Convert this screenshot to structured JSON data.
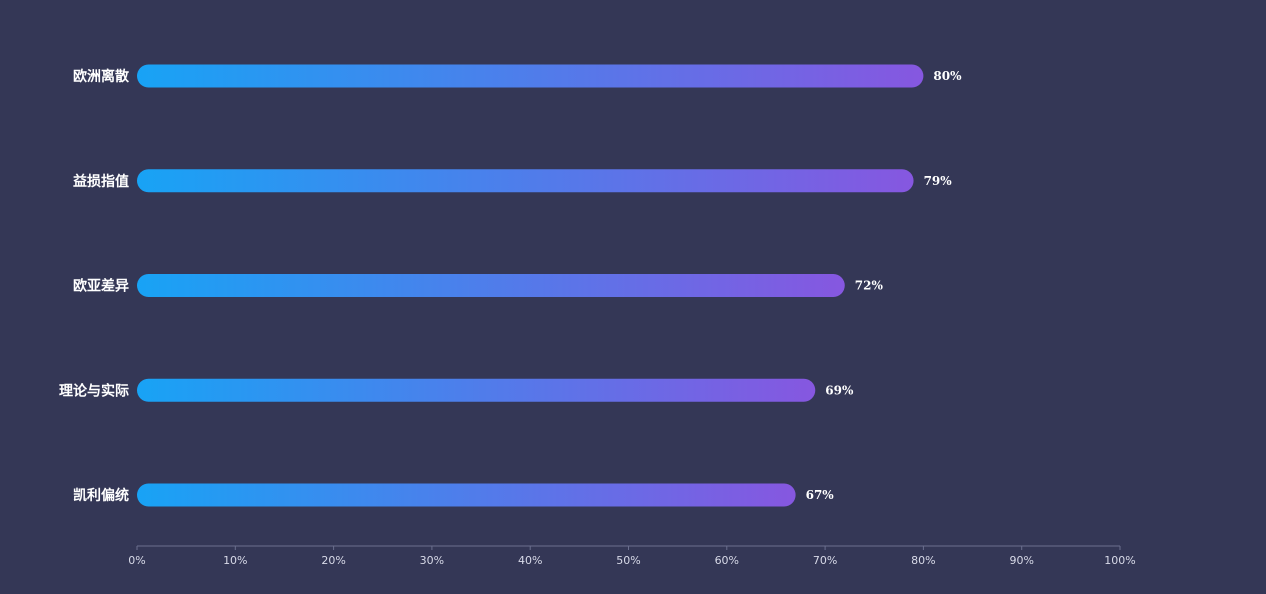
{
  "chart_data": {
    "type": "bar",
    "orientation": "horizontal",
    "categories": [
      "欧洲离散",
      "益损指值",
      "欧亚差异",
      "理论与实际",
      "凯利偏统"
    ],
    "values": [
      80,
      79,
      72,
      69,
      67
    ],
    "value_labels": [
      "80%",
      "79%",
      "72%",
      "69%",
      "67%"
    ],
    "xlim": [
      0,
      100
    ],
    "x_ticks": [
      "0%",
      "10%",
      "20%",
      "30%",
      "40%",
      "50%",
      "60%",
      "70%",
      "80%",
      "90%",
      "100%"
    ],
    "grid": false,
    "colors": {
      "bar_start": "#18a3f5",
      "bar_end": "#8657e0",
      "background": "#343756",
      "axis": "#6b6f8e"
    }
  }
}
